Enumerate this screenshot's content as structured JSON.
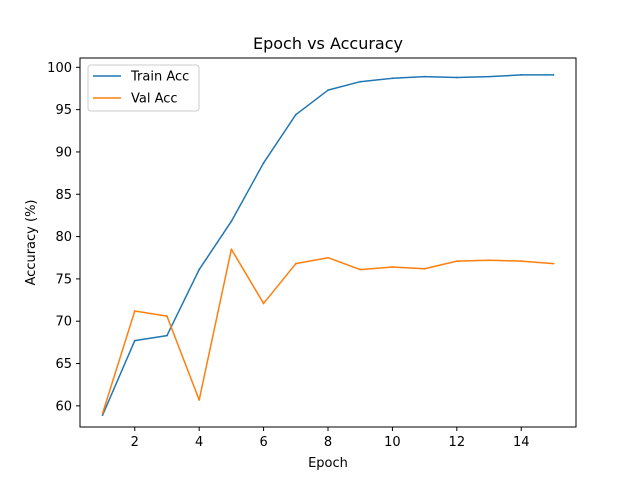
{
  "chart_data": {
    "type": "line",
    "title": "Epoch vs Accuracy",
    "xlabel": "Epoch",
    "ylabel": "Accuracy (%)",
    "x": [
      1,
      2,
      3,
      4,
      5,
      6,
      7,
      8,
      9,
      10,
      11,
      12,
      13,
      14,
      15
    ],
    "xlim": [
      0.3,
      15.7
    ],
    "ylim": [
      57.5,
      101.1
    ],
    "xticks": [
      2,
      4,
      6,
      8,
      10,
      12,
      14
    ],
    "yticks": [
      60,
      65,
      70,
      75,
      80,
      85,
      90,
      95,
      100
    ],
    "grid": false,
    "legend_position": "top-left",
    "series": [
      {
        "name": "Train Acc",
        "color": "#1f77b4",
        "values": [
          58.9,
          67.7,
          68.3,
          76.1,
          81.8,
          88.7,
          94.4,
          97.3,
          98.3,
          98.7,
          98.9,
          98.8,
          98.9,
          99.1,
          99.1
        ]
      },
      {
        "name": "Val Acc",
        "color": "#ff7f0e",
        "values": [
          59.1,
          71.2,
          70.6,
          60.7,
          78.5,
          72.1,
          76.8,
          77.5,
          76.1,
          76.4,
          76.2,
          77.1,
          77.2,
          77.1,
          76.8
        ]
      }
    ]
  }
}
